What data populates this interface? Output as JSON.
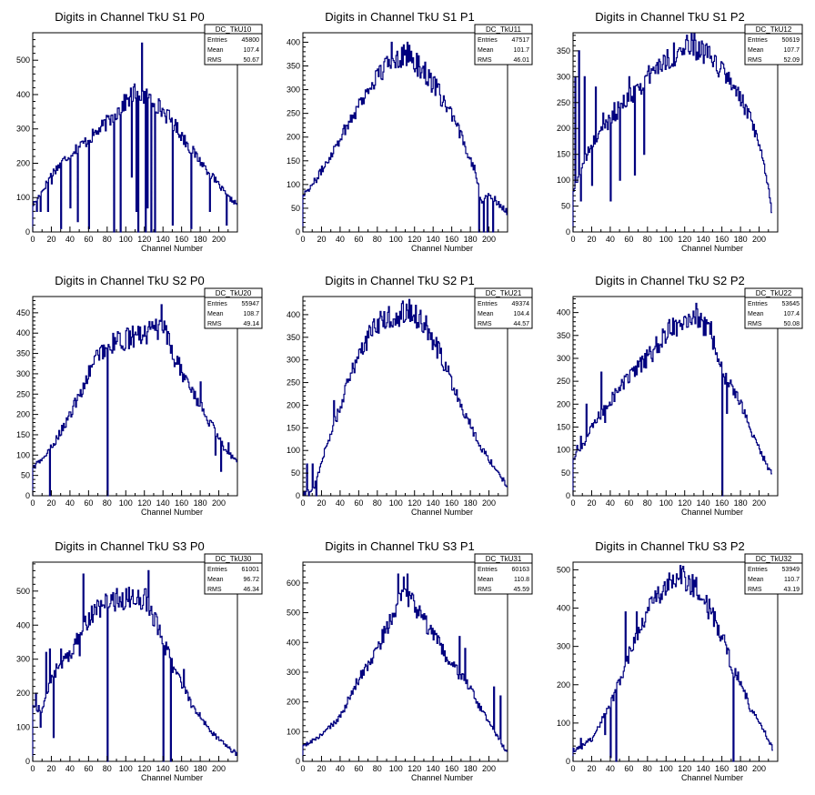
{
  "chart_data": [
    {
      "type": "histogram",
      "title": "Digits in Channel TkU S1 P0",
      "xlabel": "Channel Number",
      "ylabel": "",
      "xlim": [
        0,
        220
      ],
      "ylim": [
        0,
        580
      ],
      "xticks": [
        0,
        20,
        40,
        60,
        80,
        100,
        120,
        140,
        160,
        180,
        200
      ],
      "yticks": [
        0,
        100,
        200,
        300,
        400,
        500
      ],
      "stats": {
        "name": "DC_TkU10",
        "rows": [
          [
            "Entries",
            "45800"
          ],
          [
            "Mean",
            "107.4"
          ],
          [
            "RMS",
            "50.67"
          ]
        ]
      },
      "profile": [
        [
          0,
          80
        ],
        [
          10,
          120
        ],
        [
          20,
          170
        ],
        [
          40,
          230
        ],
        [
          60,
          270
        ],
        [
          80,
          320
        ],
        [
          100,
          380
        ],
        [
          110,
          410
        ],
        [
          130,
          380
        ],
        [
          150,
          320
        ],
        [
          170,
          240
        ],
        [
          190,
          170
        ],
        [
          210,
          100
        ],
        [
          220,
          80
        ]
      ],
      "spikes": [
        [
          4,
          60
        ],
        [
          8,
          60
        ],
        [
          16,
          60
        ],
        [
          20,
          140
        ],
        [
          30,
          10
        ],
        [
          40,
          70
        ],
        [
          48,
          30
        ],
        [
          60,
          10
        ],
        [
          87,
          0
        ],
        [
          94,
          0
        ],
        [
          106,
          160
        ],
        [
          111,
          60
        ],
        [
          113,
          0
        ],
        [
          117,
          550
        ],
        [
          121,
          0
        ],
        [
          123,
          70
        ],
        [
          127,
          0
        ],
        [
          131,
          0
        ],
        [
          150,
          20
        ],
        [
          170,
          10
        ],
        [
          190,
          60
        ],
        [
          208,
          20
        ]
      ]
    },
    {
      "type": "histogram",
      "title": "Digits in Channel TkU S1 P1",
      "xlabel": "Channel Number",
      "ylabel": "",
      "xlim": [
        0,
        220
      ],
      "ylim": [
        0,
        420
      ],
      "xticks": [
        0,
        20,
        40,
        60,
        80,
        100,
        120,
        140,
        160,
        180,
        200
      ],
      "yticks": [
        0,
        50,
        100,
        150,
        200,
        250,
        300,
        350,
        400
      ],
      "stats": {
        "name": "DC_TkU11",
        "rows": [
          [
            "Entries",
            "47517"
          ],
          [
            "Mean",
            "101.7"
          ],
          [
            "RMS",
            "46.01"
          ]
        ]
      },
      "profile": [
        [
          0,
          80
        ],
        [
          10,
          100
        ],
        [
          20,
          130
        ],
        [
          40,
          200
        ],
        [
          60,
          270
        ],
        [
          80,
          330
        ],
        [
          100,
          370
        ],
        [
          110,
          375
        ],
        [
          130,
          340
        ],
        [
          150,
          280
        ],
        [
          170,
          200
        ],
        [
          185,
          130
        ],
        [
          192,
          60
        ],
        [
          200,
          80
        ],
        [
          210,
          60
        ],
        [
          220,
          40
        ]
      ],
      "spikes": [
        [
          95,
          400
        ],
        [
          112,
          400
        ],
        [
          189,
          0
        ],
        [
          194,
          0
        ],
        [
          198,
          0
        ],
        [
          204,
          0
        ]
      ]
    },
    {
      "type": "histogram",
      "title": "Digits in Channel TkU S1 P2",
      "xlabel": "Channel Number",
      "ylabel": "",
      "xlim": [
        0,
        220
      ],
      "ylim": [
        0,
        385
      ],
      "xticks": [
        0,
        20,
        40,
        60,
        80,
        100,
        120,
        140,
        160,
        180,
        200
      ],
      "yticks": [
        0,
        50,
        100,
        150,
        200,
        250,
        300,
        350
      ],
      "stats": {
        "name": "DC_TkU12",
        "rows": [
          [
            "Entries",
            "50619"
          ],
          [
            "Mean",
            "107.7"
          ],
          [
            "RMS",
            "52.09"
          ]
        ]
      },
      "profile": [
        [
          0,
          80
        ],
        [
          10,
          130
        ],
        [
          20,
          170
        ],
        [
          40,
          220
        ],
        [
          60,
          260
        ],
        [
          80,
          300
        ],
        [
          100,
          335
        ],
        [
          120,
          355
        ],
        [
          130,
          360
        ],
        [
          150,
          330
        ],
        [
          170,
          290
        ],
        [
          190,
          220
        ],
        [
          205,
          130
        ],
        [
          212,
          60
        ],
        [
          214,
          10
        ]
      ],
      "spikes": [
        [
          2,
          300
        ],
        [
          6,
          350
        ],
        [
          8,
          60
        ],
        [
          12,
          300
        ],
        [
          20,
          90
        ],
        [
          24,
          280
        ],
        [
          32,
          230
        ],
        [
          40,
          60
        ],
        [
          44,
          250
        ],
        [
          50,
          100
        ],
        [
          60,
          300
        ],
        [
          66,
          110
        ],
        [
          70,
          280
        ],
        [
          76,
          150
        ]
      ]
    },
    {
      "type": "histogram",
      "title": "Digits in Channel TkU S2 P0",
      "xlabel": "Channel Number",
      "ylabel": "",
      "xlim": [
        0,
        220
      ],
      "ylim": [
        0,
        490
      ],
      "xticks": [
        0,
        20,
        40,
        60,
        80,
        100,
        120,
        140,
        160,
        180,
        200
      ],
      "yticks": [
        0,
        50,
        100,
        150,
        200,
        250,
        300,
        350,
        400,
        450
      ],
      "stats": {
        "name": "DC_TkU20",
        "rows": [
          [
            "Entries",
            "55947"
          ],
          [
            "Mean",
            "108.7"
          ],
          [
            "RMS",
            "49.14"
          ]
        ]
      },
      "profile": [
        [
          0,
          70
        ],
        [
          10,
          90
        ],
        [
          20,
          120
        ],
        [
          40,
          200
        ],
        [
          60,
          300
        ],
        [
          70,
          350
        ],
        [
          80,
          370
        ],
        [
          100,
          385
        ],
        [
          120,
          400
        ],
        [
          140,
          410
        ],
        [
          150,
          350
        ],
        [
          170,
          260
        ],
        [
          190,
          180
        ],
        [
          205,
          120
        ],
        [
          220,
          80
        ]
      ],
      "spikes": [
        [
          18,
          0
        ],
        [
          80,
          0
        ],
        [
          138,
          470
        ],
        [
          180,
          280
        ],
        [
          196,
          100
        ],
        [
          202,
          60
        ],
        [
          210,
          130
        ],
        [
          214,
          100
        ]
      ]
    },
    {
      "type": "histogram",
      "title": "Digits in Channel TkU S2 P1",
      "xlabel": "Channel Number",
      "ylabel": "",
      "xlim": [
        0,
        220
      ],
      "ylim": [
        0,
        440
      ],
      "xticks": [
        0,
        20,
        40,
        60,
        80,
        100,
        120,
        140,
        160,
        180,
        200
      ],
      "yticks": [
        0,
        50,
        100,
        150,
        200,
        250,
        300,
        350,
        400
      ],
      "stats": {
        "name": "DC_TkU21",
        "rows": [
          [
            "Entries",
            "49374"
          ],
          [
            "Mean",
            "104.4"
          ],
          [
            "RMS",
            "44.57"
          ]
        ]
      },
      "profile": [
        [
          0,
          0
        ],
        [
          12,
          20
        ],
        [
          20,
          80
        ],
        [
          40,
          200
        ],
        [
          60,
          320
        ],
        [
          80,
          380
        ],
        [
          100,
          400
        ],
        [
          115,
          410
        ],
        [
          130,
          380
        ],
        [
          150,
          300
        ],
        [
          170,
          200
        ],
        [
          190,
          110
        ],
        [
          210,
          50
        ],
        [
          220,
          20
        ]
      ],
      "spikes": [
        [
          4,
          70
        ],
        [
          6,
          0
        ],
        [
          10,
          70
        ],
        [
          14,
          0
        ],
        [
          25,
          110
        ],
        [
          33,
          210
        ]
      ]
    },
    {
      "type": "histogram",
      "title": "Digits in Channel TkU S2 P2",
      "xlabel": "Channel Number",
      "ylabel": "",
      "xlim": [
        0,
        220
      ],
      "ylim": [
        0,
        435
      ],
      "xticks": [
        0,
        20,
        40,
        60,
        80,
        100,
        120,
        140,
        160,
        180,
        200
      ],
      "yticks": [
        0,
        50,
        100,
        150,
        200,
        250,
        300,
        350,
        400
      ],
      "stats": {
        "name": "DC_TkU22",
        "rows": [
          [
            "Entries",
            "53645"
          ],
          [
            "Mean",
            "107.4"
          ],
          [
            "RMS",
            "50.08"
          ]
        ]
      },
      "profile": [
        [
          0,
          80
        ],
        [
          10,
          110
        ],
        [
          20,
          150
        ],
        [
          40,
          210
        ],
        [
          60,
          260
        ],
        [
          80,
          300
        ],
        [
          100,
          355
        ],
        [
          120,
          390
        ],
        [
          130,
          400
        ],
        [
          150,
          340
        ],
        [
          165,
          250
        ],
        [
          180,
          200
        ],
        [
          195,
          120
        ],
        [
          210,
          60
        ],
        [
          214,
          40
        ]
      ],
      "spikes": [
        [
          4,
          110
        ],
        [
          8,
          130
        ],
        [
          14,
          200
        ],
        [
          30,
          270
        ],
        [
          34,
          160
        ],
        [
          140,
          350
        ],
        [
          148,
          380
        ],
        [
          160,
          0
        ],
        [
          165,
          180
        ]
      ]
    },
    {
      "type": "histogram",
      "title": "Digits in Channel TkU S3 P0",
      "xlabel": "Channel Number",
      "ylabel": "",
      "xlim": [
        0,
        220
      ],
      "ylim": [
        0,
        585
      ],
      "xticks": [
        0,
        20,
        40,
        60,
        80,
        100,
        120,
        140,
        160,
        180,
        200
      ],
      "yticks": [
        0,
        100,
        200,
        300,
        400,
        500
      ],
      "stats": {
        "name": "DC_TkU30",
        "rows": [
          [
            "Entries",
            "61001"
          ],
          [
            "Mean",
            "96.72"
          ],
          [
            "RMS",
            "46.34"
          ]
        ]
      },
      "profile": [
        [
          0,
          160
        ],
        [
          10,
          150
        ],
        [
          20,
          250
        ],
        [
          40,
          320
        ],
        [
          60,
          420
        ],
        [
          80,
          470
        ],
        [
          100,
          480
        ],
        [
          120,
          480
        ],
        [
          130,
          420
        ],
        [
          150,
          280
        ],
        [
          170,
          170
        ],
        [
          190,
          90
        ],
        [
          210,
          40
        ],
        [
          220,
          20
        ]
      ],
      "spikes": [
        [
          3,
          200
        ],
        [
          8,
          100
        ],
        [
          14,
          320
        ],
        [
          18,
          330
        ],
        [
          22,
          70
        ],
        [
          30,
          330
        ],
        [
          40,
          310
        ],
        [
          50,
          310
        ],
        [
          54,
          550
        ],
        [
          70,
          470
        ],
        [
          80,
          0
        ],
        [
          124,
          560
        ],
        [
          140,
          0
        ],
        [
          148,
          0
        ],
        [
          162,
          270
        ]
      ]
    },
    {
      "type": "histogram",
      "title": "Digits in Channel TkU S3 P1",
      "xlabel": "Channel Number",
      "ylabel": "",
      "xlim": [
        0,
        220
      ],
      "ylim": [
        0,
        670
      ],
      "xticks": [
        0,
        20,
        40,
        60,
        80,
        100,
        120,
        140,
        160,
        180,
        200
      ],
      "yticks": [
        0,
        100,
        200,
        300,
        400,
        500,
        600
      ],
      "stats": {
        "name": "DC_TkU31",
        "rows": [
          [
            "Entries",
            "60163"
          ],
          [
            "Mean",
            "110.8"
          ],
          [
            "RMS",
            "45.59"
          ]
        ]
      },
      "profile": [
        [
          0,
          50
        ],
        [
          10,
          70
        ],
        [
          20,
          90
        ],
        [
          40,
          150
        ],
        [
          60,
          280
        ],
        [
          80,
          380
        ],
        [
          100,
          520
        ],
        [
          110,
          560
        ],
        [
          120,
          520
        ],
        [
          140,
          420
        ],
        [
          160,
          320
        ],
        [
          175,
          270
        ],
        [
          190,
          180
        ],
        [
          205,
          100
        ],
        [
          215,
          50
        ],
        [
          220,
          30
        ]
      ],
      "spikes": [
        [
          102,
          630
        ],
        [
          108,
          620
        ],
        [
          112,
          630
        ],
        [
          118,
          560
        ],
        [
          168,
          420
        ],
        [
          174,
          380
        ],
        [
          205,
          250
        ],
        [
          212,
          220
        ]
      ]
    },
    {
      "type": "histogram",
      "title": "Digits in Channel TkU S3 P2",
      "xlabel": "Channel Number",
      "ylabel": "",
      "xlim": [
        0,
        220
      ],
      "ylim": [
        0,
        520
      ],
      "xticks": [
        0,
        20,
        40,
        60,
        80,
        100,
        120,
        140,
        160,
        180,
        200
      ],
      "yticks": [
        0,
        100,
        200,
        300,
        400,
        500
      ],
      "stats": {
        "name": "DC_TkU32",
        "rows": [
          [
            "Entries",
            "53949"
          ],
          [
            "Mean",
            "110.7"
          ],
          [
            "RMS",
            "43.19"
          ]
        ]
      },
      "profile": [
        [
          0,
          30
        ],
        [
          10,
          40
        ],
        [
          20,
          60
        ],
        [
          40,
          150
        ],
        [
          60,
          280
        ],
        [
          80,
          400
        ],
        [
          100,
          460
        ],
        [
          115,
          480
        ],
        [
          130,
          460
        ],
        [
          150,
          380
        ],
        [
          165,
          300
        ],
        [
          170,
          240
        ],
        [
          180,
          210
        ],
        [
          190,
          140
        ],
        [
          205,
          80
        ],
        [
          215,
          30
        ]
      ],
      "spikes": [
        [
          8,
          60
        ],
        [
          18,
          60
        ],
        [
          34,
          70
        ],
        [
          40,
          10
        ],
        [
          46,
          0
        ],
        [
          50,
          200
        ],
        [
          56,
          390
        ],
        [
          68,
          390
        ],
        [
          172,
          0
        ]
      ]
    }
  ]
}
